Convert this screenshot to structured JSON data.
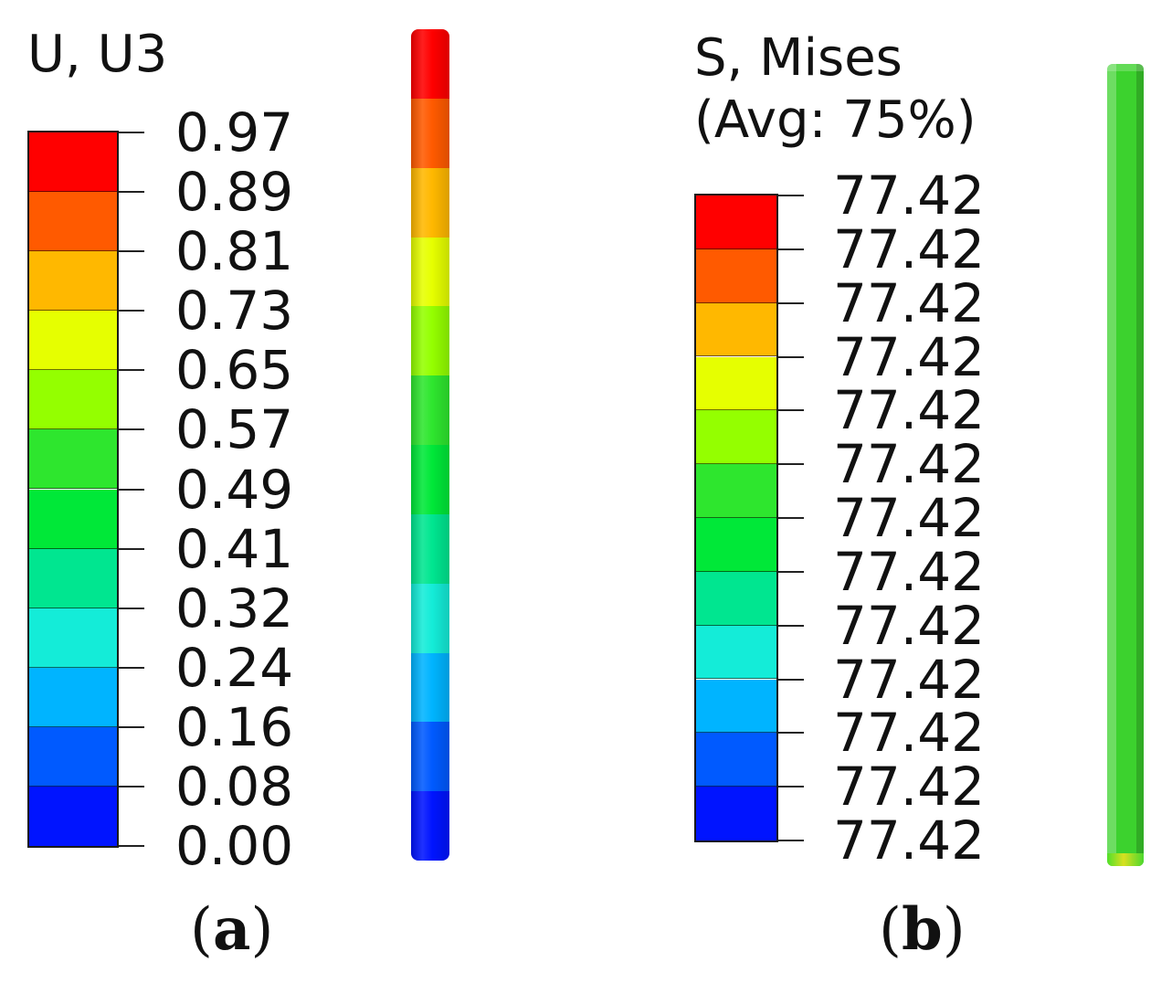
{
  "colors": {
    "contour_bands_top_to_bottom": [
      "#ff0000",
      "#ff5a00",
      "#ffb800",
      "#e6ff00",
      "#94ff00",
      "#2ee62e",
      "#00e838",
      "#00e690",
      "#14ecd8",
      "#00b4ff",
      "#005aff",
      "#0014ff"
    ],
    "panel_b_model": "#3cd22e"
  },
  "panel_a": {
    "legend": {
      "title": "U, U3",
      "tick_labels": [
        "0.97",
        "0.89",
        "0.81",
        "0.73",
        "0.65",
        "0.57",
        "0.49",
        "0.41",
        "0.32",
        "0.24",
        "0.16",
        "0.08",
        "0.00"
      ]
    },
    "model_band_colors_top_to_bottom": [
      "#ff0000",
      "#ff5a00",
      "#ffb800",
      "#e6ff00",
      "#94ff00",
      "#2ee62e",
      "#00e838",
      "#00e690",
      "#14ecd8",
      "#00b4ff",
      "#005aff",
      "#0014ff"
    ],
    "caption": {
      "open": "(",
      "letter": "a",
      "close": ")"
    }
  },
  "panel_b": {
    "legend": {
      "title_line1": "S, Mises",
      "title_line2": "(Avg: 75%)",
      "tick_labels": [
        "77.42",
        "77.42",
        "77.42",
        "77.42",
        "77.42",
        "77.42",
        "77.42",
        "77.42",
        "77.42",
        "77.42",
        "77.42",
        "77.42",
        "77.42"
      ]
    },
    "caption": {
      "open": "(",
      "letter": "b",
      "close": ")"
    }
  }
}
